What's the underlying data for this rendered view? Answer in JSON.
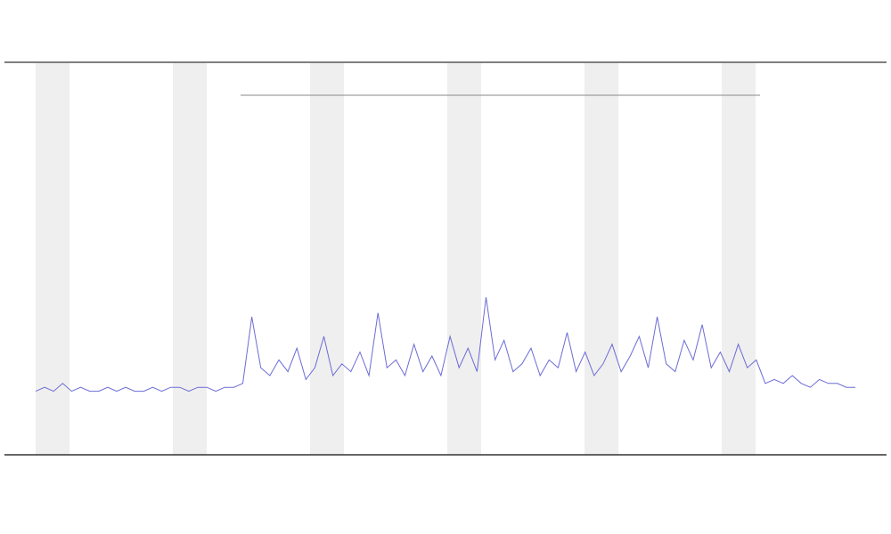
{
  "chart_data": {
    "type": "line",
    "color": "#6b6bd6",
    "ylim": [
      0,
      100
    ],
    "values": [
      16,
      17,
      16,
      18,
      16,
      17,
      16,
      16,
      17,
      16,
      17,
      16,
      16,
      17,
      16,
      17,
      17,
      16,
      17,
      17,
      16,
      17,
      17,
      18,
      35,
      22,
      20,
      24,
      21,
      27,
      19,
      22,
      30,
      20,
      23,
      21,
      26,
      20,
      36,
      22,
      24,
      20,
      28,
      21,
      25,
      20,
      30,
      22,
      27,
      21,
      40,
      24,
      29,
      21,
      23,
      27,
      20,
      24,
      22,
      31,
      21,
      26,
      20,
      23,
      28,
      21,
      25,
      30,
      22,
      35,
      23,
      21,
      29,
      24,
      33,
      22,
      26,
      21,
      28,
      22,
      24,
      18,
      19,
      18,
      20,
      18,
      17,
      19,
      18,
      18,
      17,
      17
    ]
  }
}
